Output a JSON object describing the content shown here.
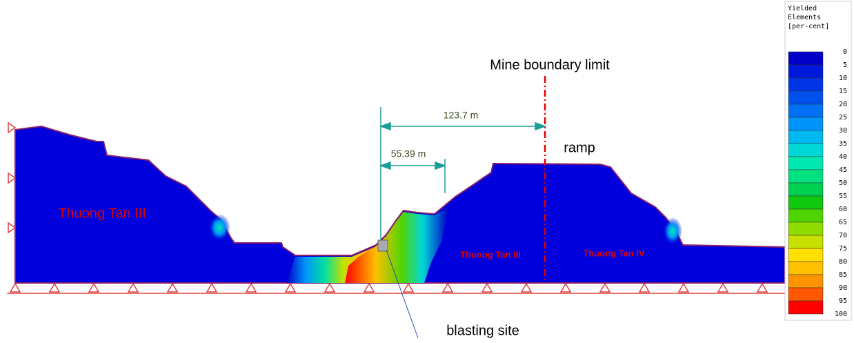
{
  "annotations": {
    "boundary": "Mine boundary limit",
    "ramp": "ramp",
    "blasting": "blasting site"
  },
  "dimensions": [
    {
      "label": "123.7 m"
    },
    {
      "label": "55.39 m"
    }
  ],
  "zones": [
    "Thuong Tan III",
    "Thuong Tan III",
    "Thuong Tan IV"
  ],
  "legend": {
    "title": [
      "Yielded",
      "Elements",
      "[per-cent]"
    ],
    "labels": [
      "0",
      "5",
      "10",
      "15",
      "20",
      "25",
      "30",
      "35",
      "40",
      "45",
      "50",
      "55",
      "60",
      "65",
      "70",
      "75",
      "80",
      "85",
      "90",
      "95",
      "100"
    ],
    "colors": [
      "#0000c8",
      "#0018dc",
      "#0034e6",
      "#0050ee",
      "#0070f4",
      "#0094fa",
      "#00b8f0",
      "#00d8d8",
      "#00e8b0",
      "#00e080",
      "#00d050",
      "#10c810",
      "#50d400",
      "#90dc00",
      "#c8e000",
      "#ffe000",
      "#ffc000",
      "#ff9400",
      "#ff5800",
      "#ff0000"
    ]
  }
}
